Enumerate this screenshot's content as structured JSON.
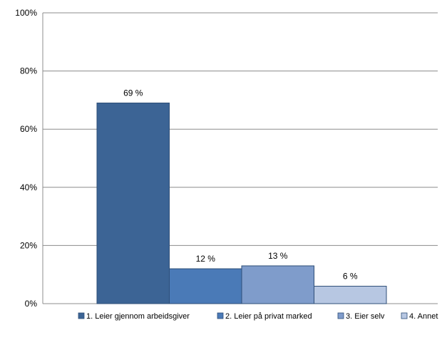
{
  "chart_data": {
    "type": "bar",
    "title": "",
    "xlabel": "",
    "ylabel": "",
    "ylim": [
      0,
      100
    ],
    "yticks": [
      {
        "value": 0,
        "label": "0%"
      },
      {
        "value": 20,
        "label": "20%"
      },
      {
        "value": 40,
        "label": "40%"
      },
      {
        "value": 60,
        "label": "60%"
      },
      {
        "value": 80,
        "label": "80%"
      },
      {
        "value": 100,
        "label": "100%"
      }
    ],
    "grid": true,
    "legend_position": "bottom",
    "series": [
      {
        "name": "1. Leier gjennom arbeidsgiver",
        "value": 69,
        "label": "69 %",
        "color": "#3c6495"
      },
      {
        "name": "2. Leier på privat marked",
        "value": 12,
        "label": "12 %",
        "color": "#4a7ab7"
      },
      {
        "name": "3. Eier selv",
        "value": 13,
        "label": "13 %",
        "color": "#7f9ccb"
      },
      {
        "name": "4. Annet",
        "value": 6,
        "label": "6 %",
        "color": "#b7c7e2"
      }
    ]
  }
}
